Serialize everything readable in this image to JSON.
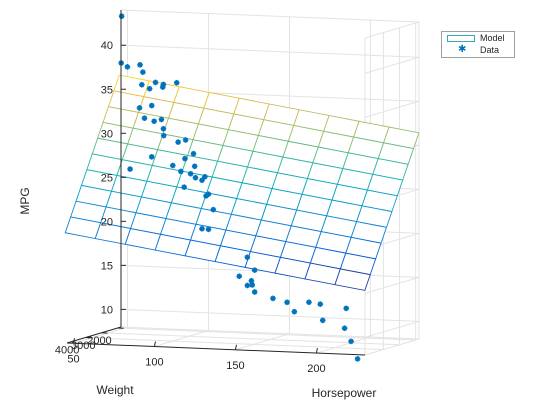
{
  "chart_data": {
    "type": "surface_scatter3d",
    "title": "",
    "axes": {
      "x": {
        "label": "Weight",
        "lim": [
          1795,
          5140
        ],
        "ticks": [
          2000,
          3000,
          4000
        ]
      },
      "y": {
        "label": "Horsepower",
        "lim": [
          46,
          230
        ],
        "ticks": [
          50,
          100,
          150,
          200
        ]
      },
      "z": {
        "label": "MPG",
        "lim": [
          8,
          44
        ],
        "ticks": [
          10,
          15,
          20,
          25,
          30,
          35,
          40
        ]
      }
    },
    "grid": true,
    "legend": {
      "placement": "top-right",
      "entries": [
        "Model",
        "Data"
      ]
    },
    "series": [
      {
        "name": "Model",
        "kind": "surface",
        "colormap": "parula",
        "equation": {
          "intercept": 46.5,
          "weight_coef": -0.0048,
          "horsepower_coef": -0.028,
          "weight_horsepower_coef": 0
        },
        "grid_x": [
          1800,
          2135,
          2470,
          2805,
          3140,
          3475,
          3810,
          4145,
          4480,
          4815,
          5150
        ],
        "grid_y": [
          45,
          63.5,
          82,
          100.5,
          119,
          137.5,
          156,
          174.5,
          193,
          211.5,
          230
        ],
        "color": "#3aa8b4"
      },
      {
        "name": "Data",
        "kind": "scatter",
        "marker": "*",
        "color": "#0072bd",
        "points": [
          [
            1835,
            52,
            26
          ],
          [
            1850,
            58,
            33
          ],
          [
            1955,
            48,
            43.4
          ],
          [
            1985,
            48,
            38.1
          ],
          [
            2000,
            52,
            37.7
          ],
          [
            2020,
            60,
            38
          ],
          [
            2045,
            62,
            37.2
          ],
          [
            2065,
            70,
            36.1
          ],
          [
            2110,
            62,
            35.8
          ],
          [
            2130,
            67,
            35.4
          ],
          [
            2220,
            76,
            35.7
          ],
          [
            2245,
            65,
            32.1
          ],
          [
            2200,
            75,
            32
          ],
          [
            2250,
            71,
            31.8
          ],
          [
            2300,
            70,
            33.6
          ],
          [
            2380,
            78,
            36.1
          ],
          [
            2420,
            97,
            28.4
          ],
          [
            2500,
            72,
            27.9
          ],
          [
            2560,
            80,
            30.4
          ],
          [
            2710,
            95,
            30.1
          ],
          [
            2670,
            90,
            29.8
          ],
          [
            2750,
            95,
            28
          ],
          [
            2800,
            88,
            27.2
          ],
          [
            2900,
            100,
            26.4
          ],
          [
            3020,
            110,
            26.2
          ],
          [
            3100,
            105,
            26.1
          ],
          [
            3200,
            110,
            25.9
          ],
          [
            3080,
            85,
            31.5
          ],
          [
            3260,
            95,
            36.9
          ],
          [
            2700,
            92,
            26.5
          ],
          [
            2950,
            103,
            27.3
          ],
          [
            3300,
            100,
            25.1
          ],
          [
            3450,
            115,
            24.3
          ],
          [
            2800,
            110,
            24.1
          ],
          [
            3500,
            120,
            22.8
          ],
          [
            3600,
            118,
            20.6
          ],
          [
            3700,
            115,
            20.7
          ],
          [
            3950,
            150,
            16.4
          ],
          [
            3900,
            145,
            17.8
          ],
          [
            4100,
            150,
            14.8
          ],
          [
            4150,
            150,
            15.3
          ],
          [
            4250,
            153,
            14.1
          ],
          [
            4320,
            165,
            13.5
          ],
          [
            4400,
            150,
            14.9
          ],
          [
            4450,
            175,
            13.2
          ],
          [
            4600,
            190,
            13.4
          ],
          [
            4700,
            198,
            13.3
          ],
          [
            4800,
            215,
            13
          ],
          [
            4750,
            200,
            11.5
          ],
          [
            4900,
            215,
            10.8
          ],
          [
            5000,
            220,
            9.4
          ],
          [
            5100,
            225,
            7.5
          ],
          [
            4500,
            180,
            12.2
          ],
          [
            3900,
            140,
            15.6
          ]
        ]
      }
    ]
  }
}
